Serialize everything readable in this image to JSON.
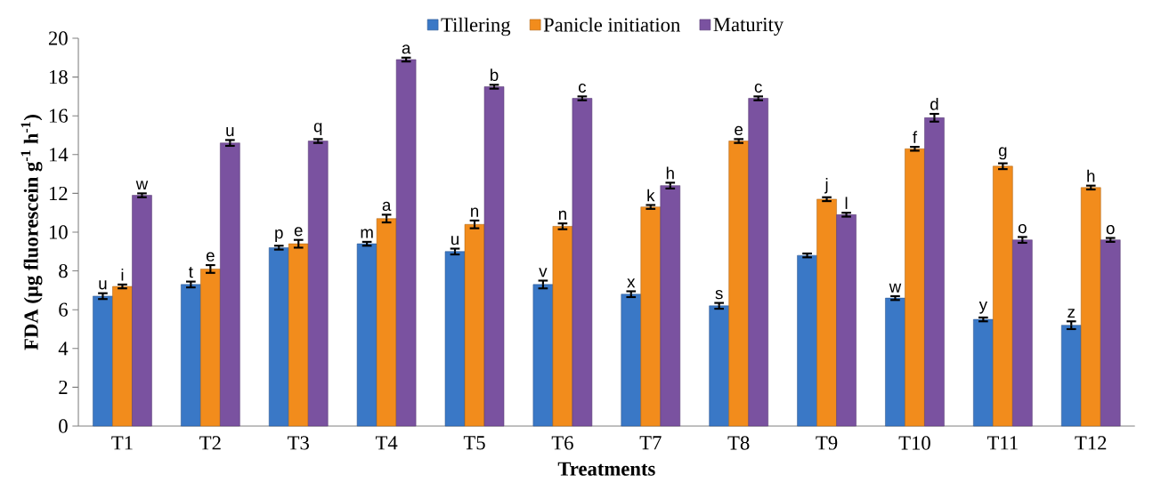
{
  "chart_data": {
    "type": "bar",
    "xlabel": "Treatments",
    "ylabel": "FDA (µg fluorescein  g$^{-1}$ h$^{-1}$)",
    "categories": [
      "T1",
      "T2",
      "T3",
      "T4",
      "T5",
      "T6",
      "T7",
      "T8",
      "T9",
      "T10",
      "T11",
      "T12"
    ],
    "series": [
      {
        "name": "Tillering",
        "color": "#3a78c6",
        "values": [
          6.7,
          7.3,
          9.2,
          9.4,
          9.0,
          7.3,
          6.8,
          6.2,
          8.8,
          6.6,
          5.5,
          5.2
        ],
        "errors": [
          0.15,
          0.15,
          0.1,
          0.1,
          0.15,
          0.2,
          0.15,
          0.15,
          0.1,
          0.1,
          0.1,
          0.2
        ],
        "value_labels": [
          "u",
          "t",
          "p",
          "m",
          "u",
          "v",
          "x",
          "s",
          null,
          "w",
          "y",
          "z"
        ]
      },
      {
        "name": "Panicle initiation",
        "color": "#f28c1c",
        "values": [
          7.2,
          8.1,
          9.4,
          10.7,
          10.4,
          10.3,
          11.3,
          14.7,
          11.7,
          14.3,
          13.4,
          12.3
        ],
        "errors": [
          0.1,
          0.2,
          0.2,
          0.2,
          0.2,
          0.15,
          0.1,
          0.1,
          0.1,
          0.1,
          0.15,
          0.1
        ],
        "value_labels": [
          "i",
          "e",
          "e",
          "a",
          "n",
          "n",
          "k",
          "e",
          "j",
          "f",
          "g",
          "h"
        ]
      },
      {
        "name": "Maturity",
        "color": "#7a52a0",
        "values": [
          11.9,
          14.6,
          14.7,
          18.9,
          17.5,
          16.9,
          12.4,
          16.9,
          10.9,
          15.9,
          9.6,
          9.6
        ],
        "errors": [
          0.1,
          0.15,
          0.1,
          0.1,
          0.1,
          0.1,
          0.15,
          0.1,
          0.1,
          0.2,
          0.15,
          0.1
        ],
        "value_labels": [
          "w",
          "u",
          "q",
          "a",
          "b",
          "c",
          "h",
          "c",
          "l",
          "d",
          "o",
          "o"
        ]
      }
    ],
    "ylim": [
      0,
      20
    ],
    "yticks": [
      0,
      2,
      4,
      6,
      8,
      10,
      12,
      14,
      16,
      18,
      20
    ],
    "legend": "top"
  }
}
